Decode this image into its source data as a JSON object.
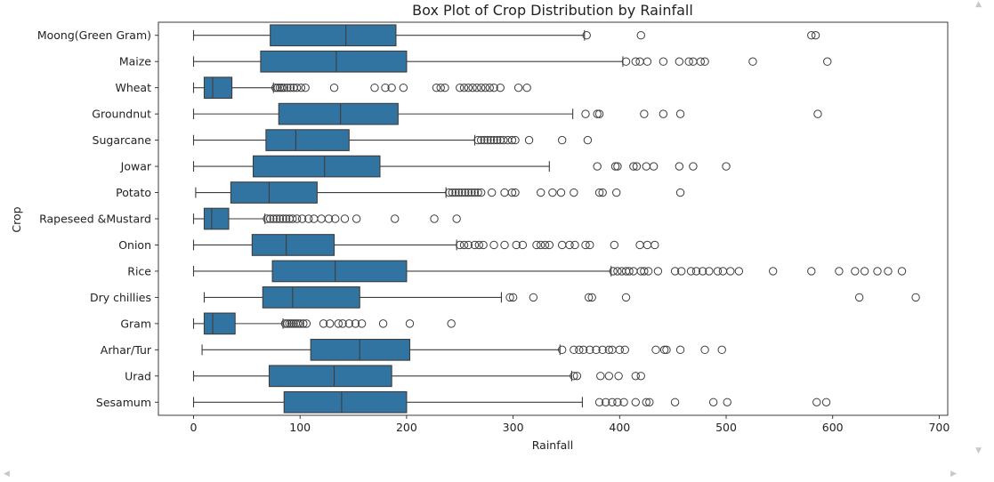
{
  "chart_data": {
    "type": "boxplot",
    "title": "Box Plot of Crop Distribution by Rainfall",
    "xlabel": "Rainfall",
    "ylabel": "Crop",
    "xlim": [
      -33,
      708
    ],
    "xticks": [
      0,
      100,
      200,
      300,
      400,
      500,
      600,
      700
    ],
    "grid": false,
    "colors": {
      "box_fill": "#3274a1",
      "line": "#3d3d3d",
      "outlier_edge": "#3d3d3d"
    },
    "categories": [
      "Moong(Green Gram)",
      "Maize",
      "Wheat",
      "Groundnut",
      "Sugarcane",
      "Jowar",
      "Potato",
      "Rapeseed &Mustard",
      "Onion",
      "Rice",
      "Dry chillies",
      "Gram",
      "Arhar/Tur",
      "Urad",
      "Sesamum"
    ],
    "series": [
      {
        "whisker_low": 0,
        "q1": 72,
        "median": 143,
        "q3": 190,
        "whisker_high": 367,
        "outliers": [
          369,
          420,
          580,
          584
        ]
      },
      {
        "whisker_low": 0,
        "q1": 63,
        "median": 134,
        "q3": 200,
        "whisker_high": 403,
        "outliers": [
          406,
          415,
          419,
          426,
          441,
          456,
          465,
          469,
          476,
          480,
          525,
          595
        ]
      },
      {
        "whisker_low": 0,
        "q1": 10,
        "median": 18,
        "q3": 36,
        "whisker_high": 75,
        "outliers": [
          77,
          79,
          81,
          83,
          85,
          88,
          91,
          94,
          97,
          101,
          105,
          132,
          170,
          180,
          186,
          197,
          228,
          232,
          236,
          250,
          254,
          258,
          262,
          266,
          270,
          274,
          278,
          282,
          288,
          305,
          313
        ]
      },
      {
        "whisker_low": 0,
        "q1": 80,
        "median": 138,
        "q3": 192,
        "whisker_high": 356,
        "outliers": [
          368,
          379,
          381,
          423,
          441,
          457,
          586
        ]
      },
      {
        "whisker_low": 0,
        "q1": 68,
        "median": 96,
        "q3": 146,
        "whisker_high": 264,
        "outliers": [
          267,
          270,
          273,
          276,
          279,
          282,
          285,
          288,
          291,
          295,
          299,
          302,
          315,
          346,
          370
        ]
      },
      {
        "whisker_low": 0,
        "q1": 56,
        "median": 123,
        "q3": 175,
        "whisker_high": 334,
        "outliers": [
          379,
          396,
          398,
          413,
          416,
          425,
          432,
          456,
          469,
          500
        ]
      },
      {
        "whisker_low": 2,
        "q1": 35,
        "median": 71,
        "q3": 116,
        "whisker_high": 237,
        "outliers": [
          240,
          243,
          246,
          249,
          252,
          255,
          258,
          261,
          264,
          267,
          270,
          280,
          292,
          299,
          302,
          326,
          337,
          345,
          357,
          381,
          384,
          397,
          457
        ]
      },
      {
        "whisker_low": 0,
        "q1": 10,
        "median": 17,
        "q3": 33,
        "whisker_high": 67,
        "outliers": [
          69,
          72,
          75,
          78,
          81,
          84,
          87,
          90,
          93,
          97,
          102,
          108,
          113,
          120,
          127,
          133,
          142,
          153,
          189,
          226,
          247
        ]
      },
      {
        "whisker_low": 0,
        "q1": 55,
        "median": 87,
        "q3": 132,
        "whisker_high": 247,
        "outliers": [
          250,
          254,
          258,
          264,
          268,
          272,
          282,
          292,
          303,
          309,
          322,
          326,
          330,
          334,
          346,
          353,
          358,
          368,
          372,
          395,
          419,
          426,
          433
        ]
      },
      {
        "whisker_low": 0,
        "q1": 74,
        "median": 133,
        "q3": 200,
        "whisker_high": 392,
        "outliers": [
          394,
          398,
          402,
          406,
          409,
          413,
          420,
          423,
          427,
          436,
          452,
          458,
          467,
          472,
          478,
          484,
          492,
          497,
          504,
          512,
          544,
          580,
          606,
          621,
          630,
          642,
          652,
          665
        ]
      },
      {
        "whisker_low": 10,
        "q1": 65,
        "median": 93,
        "q3": 156,
        "whisker_high": 289,
        "outliers": [
          297,
          300,
          319,
          371,
          374,
          406,
          625,
          678
        ]
      },
      {
        "whisker_low": 0,
        "q1": 10,
        "median": 18,
        "q3": 39,
        "whisker_high": 84,
        "outliers": [
          86,
          88,
          90,
          92,
          94,
          96,
          98,
          100,
          103,
          106,
          122,
          128,
          136,
          140,
          146,
          152,
          158,
          178,
          203,
          242
        ]
      },
      {
        "whisker_low": 8,
        "q1": 110,
        "median": 156,
        "q3": 203,
        "whisker_high": 344,
        "outliers": [
          346,
          357,
          362,
          366,
          372,
          378,
          384,
          390,
          393,
          400,
          405,
          434,
          442,
          444,
          457,
          480,
          496
        ]
      },
      {
        "whisker_low": 0,
        "q1": 71,
        "median": 132,
        "q3": 186,
        "whisker_high": 355,
        "outliers": [
          357,
          360,
          382,
          390,
          399,
          415,
          420
        ]
      },
      {
        "whisker_low": 0,
        "q1": 85,
        "median": 139,
        "q3": 200,
        "whisker_high": 365,
        "outliers": [
          381,
          387,
          393,
          398,
          404,
          415,
          425,
          428,
          452,
          488,
          501,
          585,
          594
        ]
      }
    ]
  },
  "ui": {
    "arrow_up": "▲",
    "arrow_down": "▼",
    "arrow_left": "◀",
    "arrow_right": "▶"
  }
}
